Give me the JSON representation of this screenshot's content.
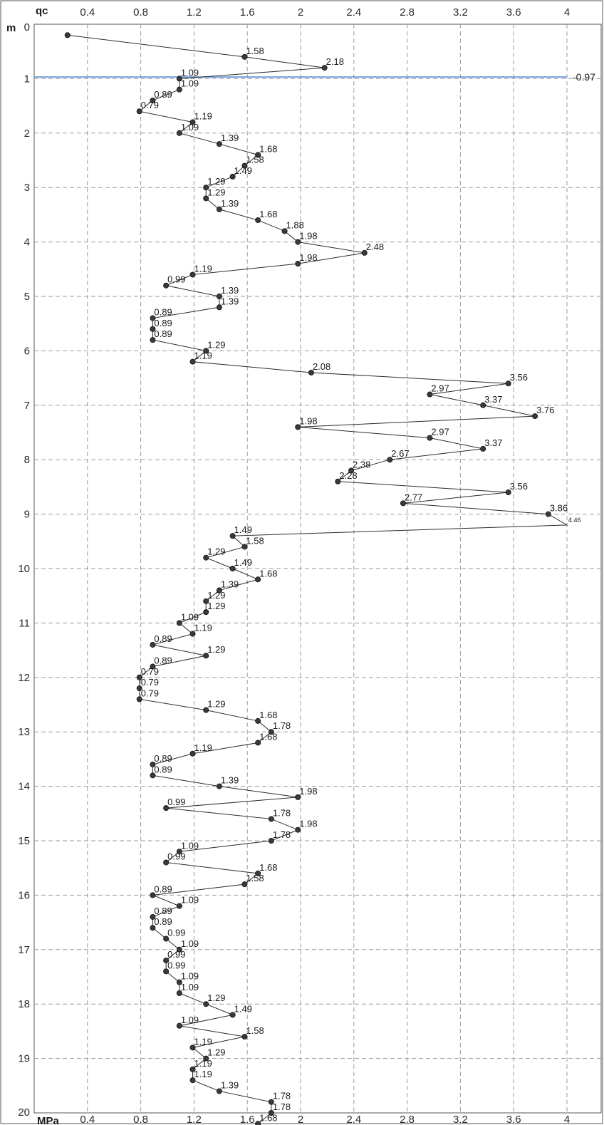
{
  "chart_data": {
    "type": "line",
    "x_label_top": "qc",
    "x_label_bottom": "MPa",
    "y_label": "m",
    "xlim": [
      0,
      4
    ],
    "ylim": [
      0,
      20
    ],
    "x_ticks": [
      "0.4",
      "0.8",
      "1.2",
      "1.6",
      "2",
      "2.4",
      "2.8",
      "3.2",
      "3.6",
      "4"
    ],
    "y_ticks": [
      "0",
      "1",
      "2",
      "3",
      "4",
      "5",
      "6",
      "7",
      "8",
      "9",
      "10",
      "11",
      "12",
      "13",
      "14",
      "15",
      "16",
      "17",
      "18",
      "19",
      "20"
    ],
    "grid": true,
    "water_level": {
      "depth": 0.97,
      "label": "-0.97",
      "color": "#5b8fd8"
    },
    "series": [
      {
        "points": [
          {
            "x": 0.25,
            "y": 0.2
          },
          {
            "x": 1.58,
            "y": 0.6,
            "label": "1.58"
          },
          {
            "x": 2.18,
            "y": 0.8,
            "label": "2.18"
          },
          {
            "x": 1.09,
            "y": 1.0,
            "label": "1.09"
          },
          {
            "x": 1.09,
            "y": 1.2,
            "label": "1.09"
          },
          {
            "x": 0.89,
            "y": 1.4,
            "label": "0.89"
          },
          {
            "x": 0.79,
            "y": 1.6,
            "label": "0.79"
          },
          {
            "x": 1.19,
            "y": 1.8,
            "label": "1.19"
          },
          {
            "x": 1.09,
            "y": 2.0,
            "label": "1.09"
          },
          {
            "x": 1.39,
            "y": 2.2,
            "label": "1.39"
          },
          {
            "x": 1.68,
            "y": 2.4,
            "label": "1.68"
          },
          {
            "x": 1.58,
            "y": 2.6,
            "label": "1.58"
          },
          {
            "x": 1.49,
            "y": 2.8,
            "label": "1.49"
          },
          {
            "x": 1.29,
            "y": 3.0,
            "label": "1.29"
          },
          {
            "x": 1.29,
            "y": 3.2,
            "label": "1.29"
          },
          {
            "x": 1.39,
            "y": 3.4,
            "label": "1.39"
          },
          {
            "x": 1.68,
            "y": 3.6,
            "label": "1.68"
          },
          {
            "x": 1.88,
            "y": 3.8,
            "label": "1.88"
          },
          {
            "x": 1.98,
            "y": 4.0,
            "label": "1.98"
          },
          {
            "x": 2.48,
            "y": 4.2,
            "label": "2.48"
          },
          {
            "x": 1.98,
            "y": 4.4,
            "label": "1.98"
          },
          {
            "x": 1.19,
            "y": 4.6,
            "label": "1.19"
          },
          {
            "x": 0.99,
            "y": 4.8,
            "label": "0.99"
          },
          {
            "x": 1.39,
            "y": 5.0,
            "label": "1.39"
          },
          {
            "x": 1.39,
            "y": 5.2,
            "label": "1.39"
          },
          {
            "x": 0.89,
            "y": 5.4,
            "label": "0.89"
          },
          {
            "x": 0.89,
            "y": 5.6,
            "label": "0.89"
          },
          {
            "x": 0.89,
            "y": 5.8,
            "label": "0.89"
          },
          {
            "x": 1.29,
            "y": 6.0,
            "label": "1.29"
          },
          {
            "x": 1.19,
            "y": 6.2,
            "label": "1.19"
          },
          {
            "x": 2.08,
            "y": 6.4,
            "label": "2.08"
          },
          {
            "x": 3.56,
            "y": 6.6,
            "label": "3.56"
          },
          {
            "x": 2.97,
            "y": 6.8,
            "label": "2.97"
          },
          {
            "x": 3.37,
            "y": 7.0,
            "label": "3.37"
          },
          {
            "x": 3.76,
            "y": 7.2,
            "label": "3.76"
          },
          {
            "x": 1.98,
            "y": 7.4,
            "label": "1.98"
          },
          {
            "x": 2.97,
            "y": 7.6,
            "label": "2.97"
          },
          {
            "x": 3.37,
            "y": 7.8,
            "label": "3.37"
          },
          {
            "x": 2.67,
            "y": 8.0,
            "label": "2.67"
          },
          {
            "x": 2.38,
            "y": 8.2,
            "label": "2.38"
          },
          {
            "x": 2.28,
            "y": 8.4,
            "label": "2.28"
          },
          {
            "x": 3.56,
            "y": 8.6,
            "label": "3.56"
          },
          {
            "x": 2.77,
            "y": 8.8,
            "label": "2.77"
          },
          {
            "x": 3.86,
            "y": 9.0,
            "label": "3.86"
          },
          {
            "x": 4.0,
            "y": 9.2,
            "label": "4.46",
            "marker": false,
            "small": true
          },
          {
            "x": 1.49,
            "y": 9.4,
            "label": "1.49"
          },
          {
            "x": 1.58,
            "y": 9.6,
            "label": "1.58"
          },
          {
            "x": 1.29,
            "y": 9.8,
            "label": "1.29"
          },
          {
            "x": 1.49,
            "y": 10.0,
            "label": "1.49"
          },
          {
            "x": 1.68,
            "y": 10.2,
            "label": "1.68"
          },
          {
            "x": 1.39,
            "y": 10.4,
            "label": "1.39"
          },
          {
            "x": 1.29,
            "y": 10.6,
            "label": "1.29"
          },
          {
            "x": 1.29,
            "y": 10.8,
            "label": "1.29"
          },
          {
            "x": 1.09,
            "y": 11.0,
            "label": "1.09"
          },
          {
            "x": 1.19,
            "y": 11.2,
            "label": "1.19"
          },
          {
            "x": 0.89,
            "y": 11.4,
            "label": "0.89"
          },
          {
            "x": 1.29,
            "y": 11.6,
            "label": "1.29"
          },
          {
            "x": 0.89,
            "y": 11.8,
            "label": "0.89"
          },
          {
            "x": 0.79,
            "y": 12.0,
            "label": "0.79"
          },
          {
            "x": 0.79,
            "y": 12.2,
            "label": "0.79"
          },
          {
            "x": 0.79,
            "y": 12.4,
            "label": "0.79"
          },
          {
            "x": 1.29,
            "y": 12.6,
            "label": "1.29"
          },
          {
            "x": 1.68,
            "y": 12.8,
            "label": "1.68"
          },
          {
            "x": 1.78,
            "y": 13.0,
            "label": "1.78"
          },
          {
            "x": 1.68,
            "y": 13.2,
            "label": "1.68"
          },
          {
            "x": 1.19,
            "y": 13.4,
            "label": "1.19"
          },
          {
            "x": 0.89,
            "y": 13.6,
            "label": "0.89"
          },
          {
            "x": 0.89,
            "y": 13.8,
            "label": "0.89"
          },
          {
            "x": 1.39,
            "y": 14.0,
            "label": "1.39"
          },
          {
            "x": 1.98,
            "y": 14.2,
            "label": "1.98"
          },
          {
            "x": 0.99,
            "y": 14.4,
            "label": "0.99"
          },
          {
            "x": 1.78,
            "y": 14.6,
            "label": "1.78"
          },
          {
            "x": 1.98,
            "y": 14.8,
            "label": "1.98"
          },
          {
            "x": 1.78,
            "y": 15.0,
            "label": "1.78"
          },
          {
            "x": 1.09,
            "y": 15.2,
            "label": "1.09"
          },
          {
            "x": 0.99,
            "y": 15.4,
            "label": "0.99"
          },
          {
            "x": 1.68,
            "y": 15.6,
            "label": "1.68"
          },
          {
            "x": 1.58,
            "y": 15.8,
            "label": "1.58"
          },
          {
            "x": 0.89,
            "y": 16.0,
            "label": "0.89"
          },
          {
            "x": 1.09,
            "y": 16.2,
            "label": "1.09"
          },
          {
            "x": 0.89,
            "y": 16.4,
            "label": "0.89"
          },
          {
            "x": 0.89,
            "y": 16.6,
            "label": "0.89"
          },
          {
            "x": 0.99,
            "y": 16.8,
            "label": "0.99"
          },
          {
            "x": 1.09,
            "y": 17.0,
            "label": "1.09"
          },
          {
            "x": 0.99,
            "y": 17.2,
            "label": "0.99"
          },
          {
            "x": 0.99,
            "y": 17.4,
            "label": "0.99"
          },
          {
            "x": 1.09,
            "y": 17.6,
            "label": "1.09"
          },
          {
            "x": 1.09,
            "y": 17.8,
            "label": "1.09"
          },
          {
            "x": 1.29,
            "y": 18.0,
            "label": "1.29"
          },
          {
            "x": 1.49,
            "y": 18.2,
            "label": "1.49"
          },
          {
            "x": 1.09,
            "y": 18.4,
            "label": "1.09"
          },
          {
            "x": 1.58,
            "y": 18.6,
            "label": "1.58"
          },
          {
            "x": 1.19,
            "y": 18.8,
            "label": "1.19"
          },
          {
            "x": 1.29,
            "y": 19.0,
            "label": "1.29"
          },
          {
            "x": 1.19,
            "y": 19.2,
            "label": "1.19"
          },
          {
            "x": 1.19,
            "y": 19.4,
            "label": "1.19"
          },
          {
            "x": 1.39,
            "y": 19.6,
            "label": "1.39"
          },
          {
            "x": 1.78,
            "y": 19.8,
            "label": "1.78"
          },
          {
            "x": 1.78,
            "y": 20.0,
            "label": "1.78"
          },
          {
            "x": 1.68,
            "y": 20.2,
            "label": "1.68"
          }
        ]
      }
    ]
  }
}
